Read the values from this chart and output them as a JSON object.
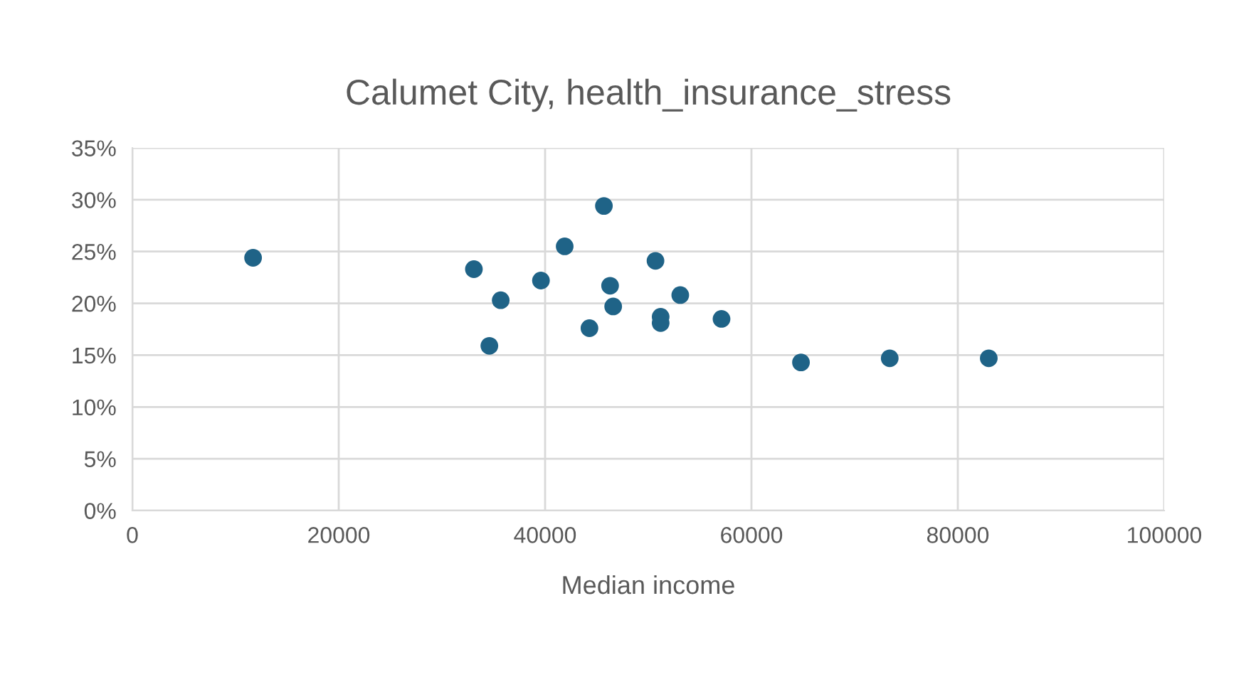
{
  "chart_data": {
    "type": "scatter",
    "title": "Calumet City, health_insurance_stress",
    "xlabel": "Median income",
    "x": [
      11700,
      33100,
      34600,
      35700,
      39600,
      41900,
      44300,
      45700,
      46300,
      46600,
      50700,
      51200,
      51200,
      53100,
      57100,
      64800,
      73400,
      83000
    ],
    "values": [
      0.244,
      0.233,
      0.159,
      0.203,
      0.222,
      0.255,
      0.176,
      0.294,
      0.217,
      0.197,
      0.241,
      0.187,
      0.181,
      0.208,
      0.185,
      0.143,
      0.147,
      0.147
    ],
    "color": "#1f6387",
    "marker": "circle",
    "xlim": [
      0,
      100000
    ],
    "xticks": [
      0,
      20000,
      40000,
      60000,
      80000,
      100000
    ],
    "ylim": [
      0,
      0.35
    ],
    "yticks": [
      {
        "value": 0,
        "label": "0%"
      },
      {
        "value": 0.05,
        "label": "5%"
      },
      {
        "value": 0.1,
        "label": "10%"
      },
      {
        "value": 0.15,
        "label": "15%"
      },
      {
        "value": 0.2,
        "label": "20%"
      },
      {
        "value": 0.25,
        "label": "25%"
      },
      {
        "value": 0.3,
        "label": "30%"
      },
      {
        "value": 0.35,
        "label": "35%"
      }
    ],
    "grid": true,
    "legend": false
  }
}
